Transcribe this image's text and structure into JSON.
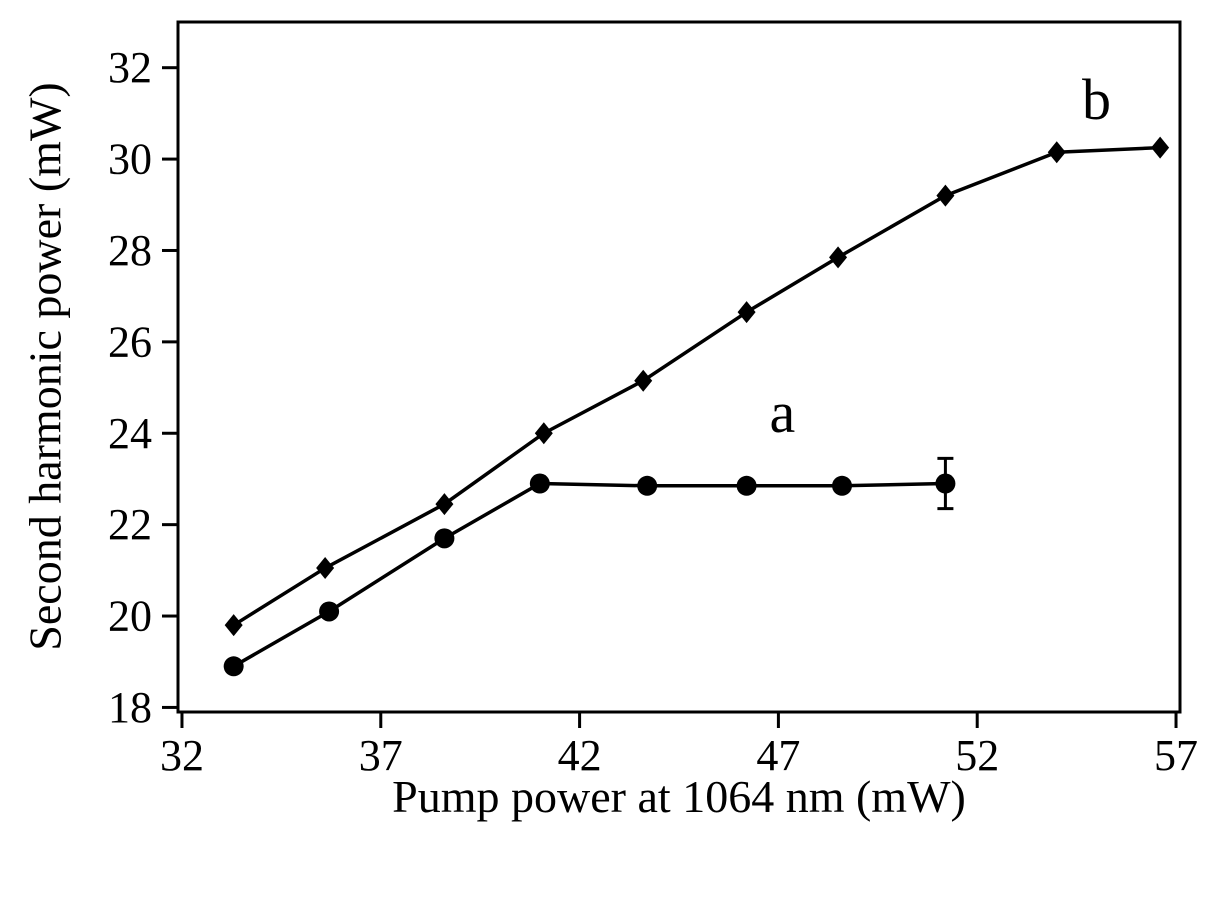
{
  "figure": {
    "background": "#ffffff",
    "frame_color": "#000000"
  },
  "chart_data": {
    "type": "line",
    "title": "",
    "xlabel": "Pump power at 1064 nm (mW)",
    "ylabel": "Second harmonic power (mW)",
    "xlim": [
      31.9,
      57.1
    ],
    "ylim": [
      17.9,
      33.0
    ],
    "xticks": [
      32,
      37,
      42,
      47,
      52,
      57
    ],
    "yticks": [
      18,
      20,
      22,
      24,
      26,
      28,
      30,
      32
    ],
    "grid": false,
    "legend_position": "none",
    "series": [
      {
        "name": "a",
        "marker": "circle",
        "color": "#000000",
        "points": [
          [
            33.3,
            18.9
          ],
          [
            35.7,
            20.1
          ],
          [
            38.6,
            21.7
          ],
          [
            41.0,
            22.9
          ],
          [
            43.7,
            22.85
          ],
          [
            46.2,
            22.85
          ],
          [
            48.6,
            22.85
          ],
          [
            51.2,
            22.9
          ]
        ],
        "error_bar": {
          "x": 51.2,
          "y": 22.9,
          "plus": 0.55,
          "minus": 0.55
        },
        "label": "a",
        "label_pos": [
          47.1,
          24.45
        ]
      },
      {
        "name": "b",
        "marker": "diamond",
        "color": "#000000",
        "points": [
          [
            33.3,
            19.8
          ],
          [
            35.6,
            21.05
          ],
          [
            38.6,
            22.45
          ],
          [
            41.1,
            24.0
          ],
          [
            43.6,
            25.15
          ],
          [
            46.2,
            26.65
          ],
          [
            48.5,
            27.85
          ],
          [
            51.2,
            29.2
          ],
          [
            54.0,
            30.15
          ],
          [
            56.6,
            30.25
          ]
        ],
        "label": "b",
        "label_pos": [
          55.0,
          31.3
        ]
      }
    ]
  }
}
